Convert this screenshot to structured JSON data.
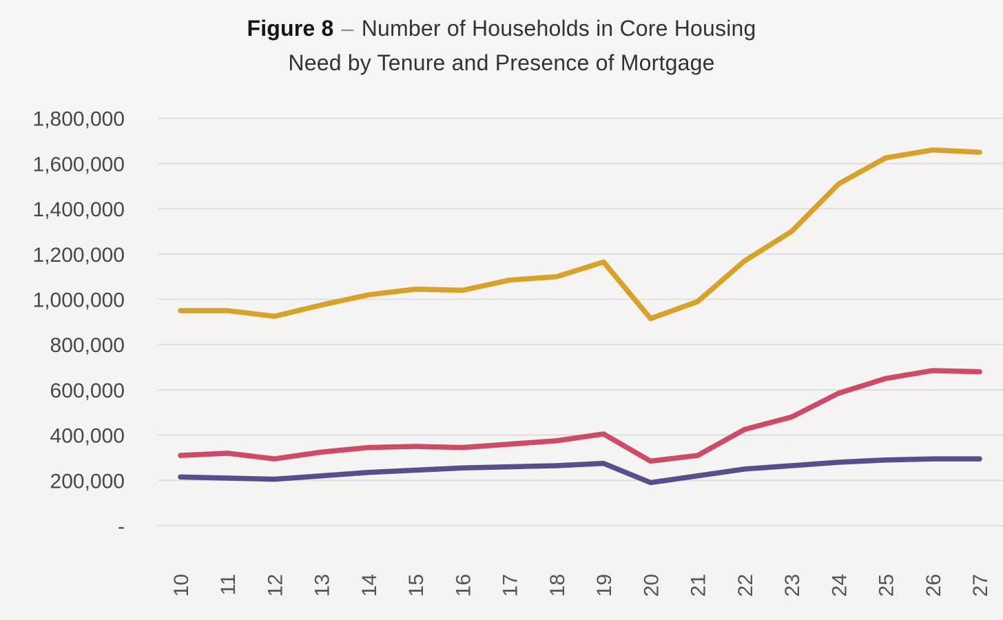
{
  "title": {
    "figure_label": "Figure 8",
    "separator": "–",
    "line1": "Number of Households in Core Housing",
    "line2": "Need by Tenure and Presence of Mortgage"
  },
  "chart_data": {
    "type": "line",
    "title": "Figure 8 – Number of Households in Core Housing Need by Tenure and Presence of Mortgage",
    "categories": [
      "10",
      "11",
      "12",
      "13",
      "14",
      "15",
      "16",
      "17",
      "18",
      "19",
      "20",
      "21",
      "22",
      "23",
      "24",
      "25",
      "26",
      "27"
    ],
    "series": [
      {
        "name": "gold-line",
        "color": "#D8A128",
        "values": [
          950000,
          950000,
          925000,
          975000,
          1020000,
          1045000,
          1040000,
          1085000,
          1100000,
          1165000,
          915000,
          990000,
          1170000,
          1300000,
          1510000,
          1625000,
          1660000,
          1650000
        ]
      },
      {
        "name": "pink-line",
        "color": "#CE4A66",
        "values": [
          310000,
          320000,
          295000,
          325000,
          345000,
          350000,
          345000,
          360000,
          375000,
          405000,
          285000,
          310000,
          425000,
          480000,
          585000,
          650000,
          685000,
          680000
        ]
      },
      {
        "name": "purple-line",
        "color": "#564F8C",
        "values": [
          215000,
          210000,
          205000,
          220000,
          235000,
          245000,
          255000,
          260000,
          265000,
          275000,
          190000,
          220000,
          250000,
          265000,
          280000,
          290000,
          295000,
          295000
        ]
      }
    ],
    "ylim": [
      0,
      1800000
    ],
    "y_tick_step": 200000,
    "y_tick_labels": [
      "-",
      "200,000",
      "400,000",
      "600,000",
      "800,000",
      "1,000,000",
      "1,200,000",
      "1,400,000",
      "1,600,000",
      "1,800,000"
    ],
    "xlabel": "",
    "ylabel": "",
    "grid": "horizontal",
    "legend": "none"
  },
  "colors": {
    "background": "#F5F4F2",
    "gridline": "#D8D8D8",
    "y_axis_text": "#474747",
    "x_axis_text": "#555555",
    "title_text": "#151515",
    "title_separator": "#8A8A8A"
  }
}
